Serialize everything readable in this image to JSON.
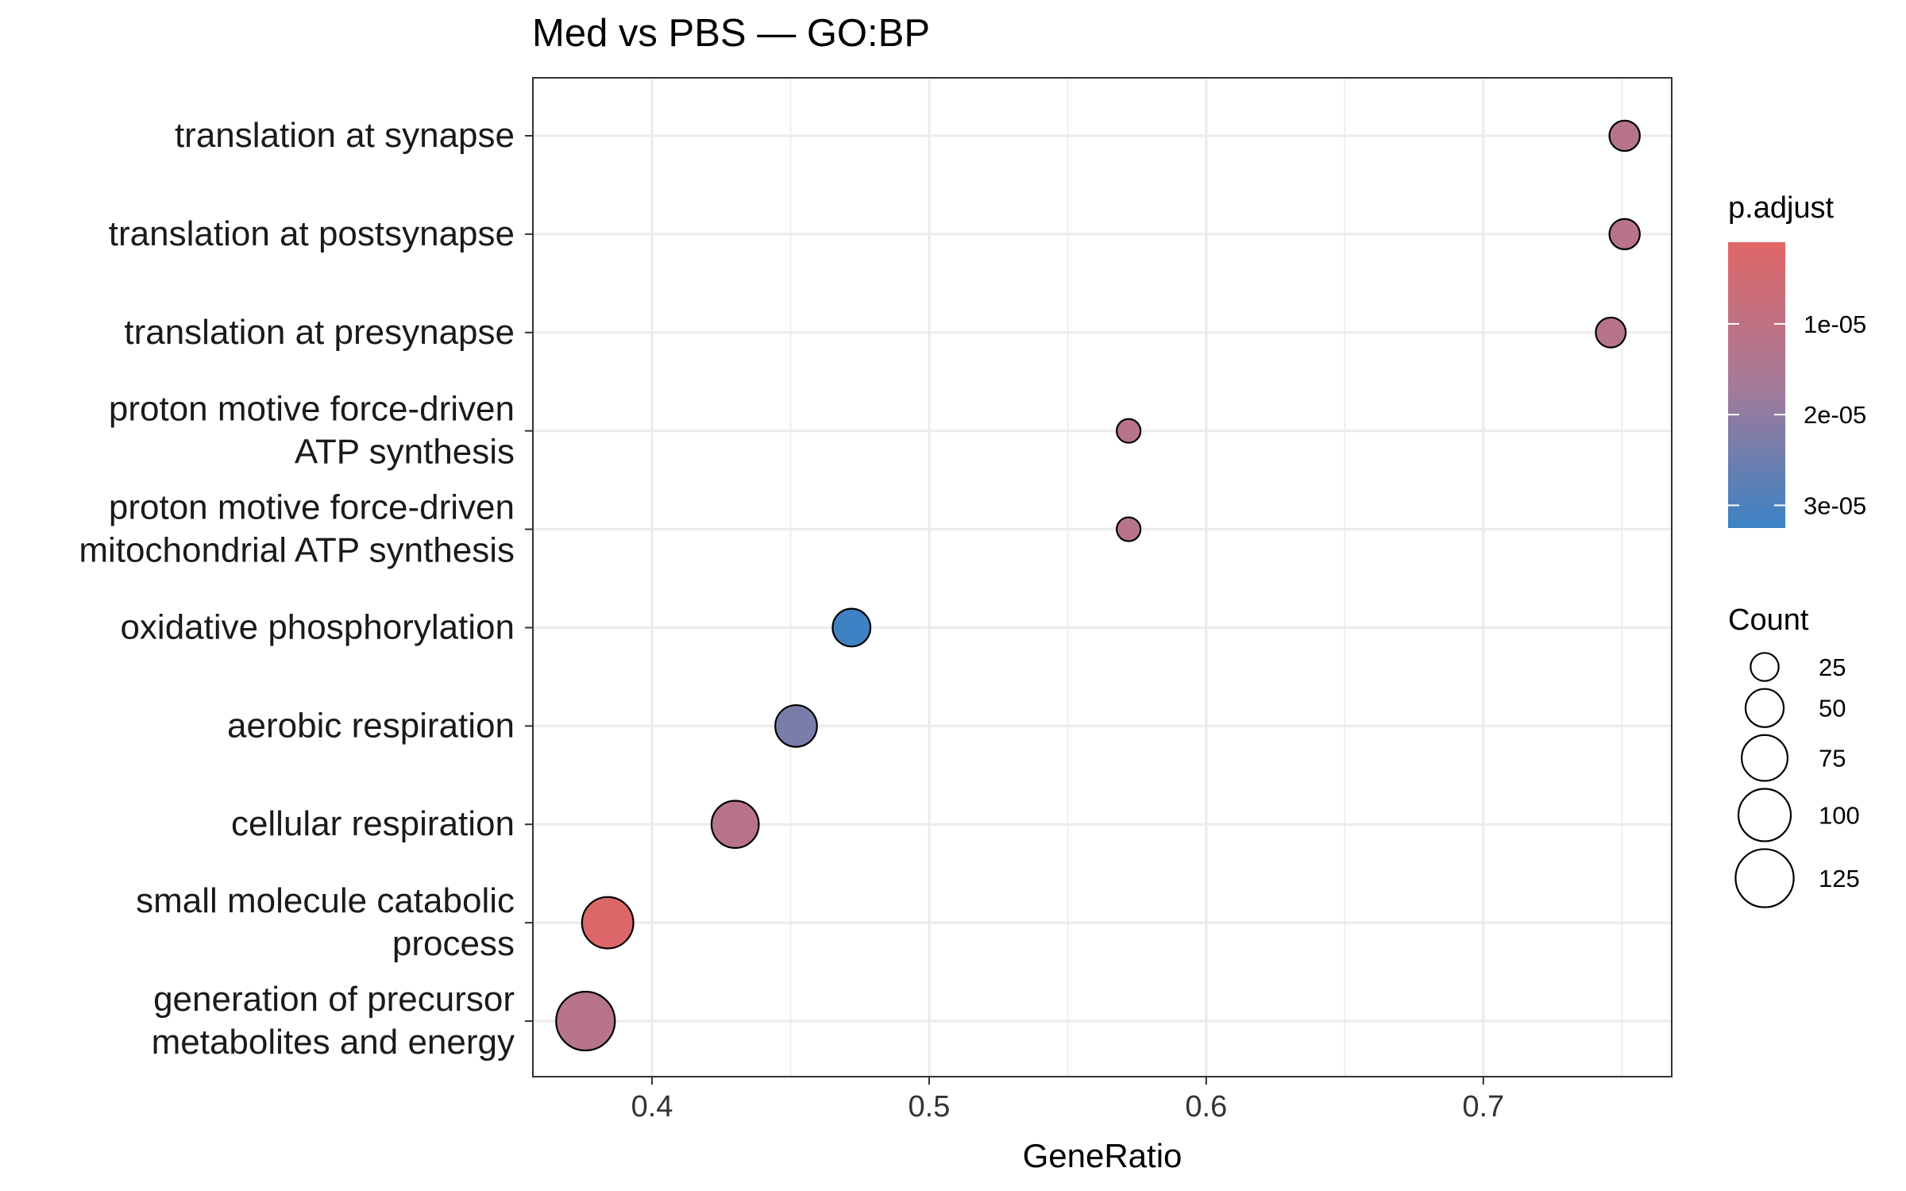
{
  "chart_data": {
    "type": "scatter",
    "title": "Med vs PBS — GO:BP",
    "xlabel": "GeneRatio",
    "ylabel": "",
    "xlim": [
      0.357,
      0.768
    ],
    "xticks": [
      "0.4",
      "0.5",
      "0.6",
      "0.7"
    ],
    "grid": true,
    "legend_position": "right",
    "categories": [
      {
        "label": "translation at synapse",
        "lines": [
          "translation at synapse"
        ]
      },
      {
        "label": "translation at postsynapse",
        "lines": [
          "translation at postsynapse"
        ]
      },
      {
        "label": "translation at presynapse",
        "lines": [
          "translation at presynapse"
        ]
      },
      {
        "label": "proton motive force-driven ATP synthesis",
        "lines": [
          "proton motive force-driven",
          "ATP synthesis"
        ]
      },
      {
        "label": "proton motive force-driven mitochondrial ATP synthesis",
        "lines": [
          "proton motive force-driven",
          "mitochondrial ATP synthesis"
        ]
      },
      {
        "label": "oxidative phosphorylation",
        "lines": [
          "oxidative phosphorylation"
        ]
      },
      {
        "label": "aerobic respiration",
        "lines": [
          "aerobic respiration"
        ]
      },
      {
        "label": "cellular respiration",
        "lines": [
          "cellular respiration"
        ]
      },
      {
        "label": "small molecule catabolic process",
        "lines": [
          "small molecule catabolic",
          "process"
        ]
      },
      {
        "label": "generation of precursor metabolites and energy",
        "lines": [
          "generation of precursor",
          "metabolites and energy"
        ]
      }
    ],
    "points": [
      {
        "term": "translation at synapse",
        "gene_ratio": 0.751,
        "count": 30,
        "p_adjust": 1.2e-05
      },
      {
        "term": "translation at postsynapse",
        "gene_ratio": 0.751,
        "count": 30,
        "p_adjust": 1.2e-05
      },
      {
        "term": "translation at presynapse",
        "gene_ratio": 0.746,
        "count": 29,
        "p_adjust": 1.2e-05
      },
      {
        "term": "proton motive force-driven ATP synthesis",
        "gene_ratio": 0.572,
        "count": 17,
        "p_adjust": 1.2e-05
      },
      {
        "term": "proton motive force-driven mitochondrial ATP synthesis",
        "gene_ratio": 0.572,
        "count": 17,
        "p_adjust": 1.2e-05
      },
      {
        "term": "oxidative phosphorylation",
        "gene_ratio": 0.472,
        "count": 49,
        "p_adjust": 3.2e-05
      },
      {
        "term": "aerobic respiration",
        "gene_ratio": 0.452,
        "count": 61,
        "p_adjust": 2.3e-05
      },
      {
        "term": "cellular respiration",
        "gene_ratio": 0.43,
        "count": 80,
        "p_adjust": 1.2e-05
      },
      {
        "term": "small molecule catabolic process",
        "gene_ratio": 0.384,
        "count": 96,
        "p_adjust": 2e-06
      },
      {
        "term": "generation of precursor metabolites and energy",
        "gene_ratio": 0.376,
        "count": 128,
        "p_adjust": 1.2e-05
      }
    ],
    "color_legend": {
      "title": "p.adjust",
      "domain": [
        1e-06,
        3.25e-05
      ],
      "ticks": [
        {
          "value": 1e-05,
          "label": "1e-05"
        },
        {
          "value": 2e-05,
          "label": "2e-05"
        },
        {
          "value": 3e-05,
          "label": "3e-05"
        }
      ],
      "low_color": "#e06666",
      "mid_color": "#a57a98",
      "high_color": "#3b82c4"
    },
    "size_legend": {
      "title": "Count",
      "entries": [
        {
          "value": 25,
          "label": "25"
        },
        {
          "value": 50,
          "label": "50"
        },
        {
          "value": 75,
          "label": "75"
        },
        {
          "value": 100,
          "label": "100"
        },
        {
          "value": 125,
          "label": "125"
        }
      ]
    }
  }
}
